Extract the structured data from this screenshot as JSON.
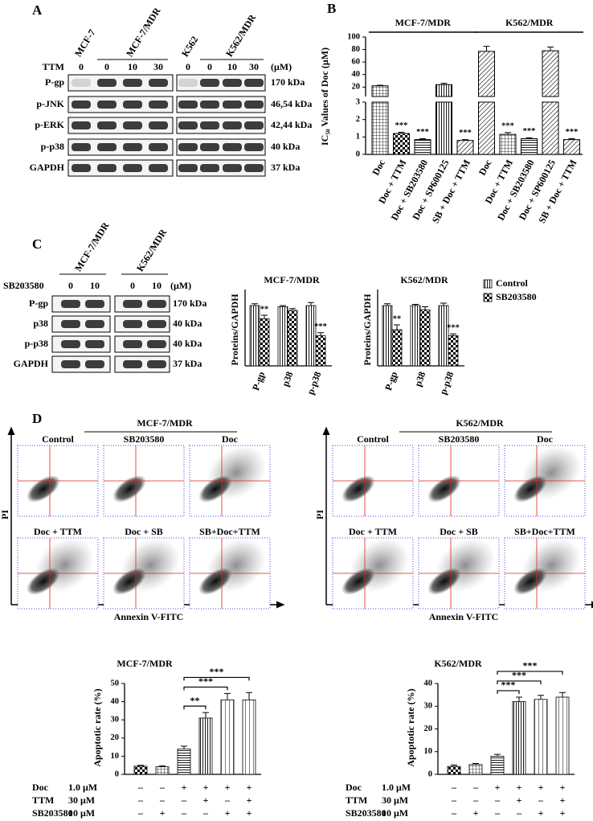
{
  "panel_a": {
    "label": "A",
    "cell_lines": [
      "MCF-7",
      "MCF-7/MDR",
      "K562",
      "K562/MDR"
    ],
    "treatment": "TTM",
    "doses": [
      0,
      0,
      10,
      30,
      0,
      0,
      10,
      30
    ],
    "unit": "(μM)",
    "proteins": [
      "P-gp",
      "p-JNK",
      "p-ERK",
      "p-p38",
      "GAPDH"
    ],
    "sizes": [
      "170 kDa",
      "46,54 kDa",
      "42,44 kDa",
      "40 kDa",
      "37 kDa"
    ]
  },
  "panel_b": {
    "label": "B"
  },
  "panel_c": {
    "label": "C",
    "cell_lines": [
      "MCF-7/MDR",
      "K562/MDR"
    ],
    "treatment": "SB203580",
    "doses": [
      0,
      10,
      0,
      10
    ],
    "unit": "(μM)",
    "proteins": [
      "P-gp",
      "p38",
      "p-p38",
      "GAPDH"
    ],
    "sizes": [
      "170 kDa",
      "40 kDa",
      "40 kDa",
      "37 kDa"
    ]
  },
  "panel_d": {
    "label": "D",
    "y_axis": "PI",
    "x_axis": "Annexin V-FITC",
    "flow": [
      {
        "title": "MCF-7/MDR",
        "conditions": [
          "Control",
          "SB203580",
          "Doc",
          "Doc + TTM",
          "Doc + SB",
          "SB+Doc+TTM"
        ]
      },
      {
        "title": "K562/MDR",
        "conditions": [
          "Control",
          "SB203580",
          "Doc",
          "Doc + TTM",
          "Doc + SB",
          "SB+Doc+TTM"
        ]
      }
    ]
  },
  "chart_data": [
    {
      "type": "broken_bar",
      "ylabel": "IC₅₀ Values of Doc (μM)",
      "groups": [
        "MCF-7/MDR",
        "K562/MDR"
      ],
      "categories": [
        "Doc",
        "Doc + TTM",
        "Doc + SB203580",
        "Doc + SP600125",
        "SB + Doc + TTM",
        "Doc",
        "Doc + TTM",
        "Doc + SB203580",
        "Doc + SP600125",
        "SB + Doc + TTM"
      ],
      "values": [
        22,
        1.2,
        0.85,
        24,
        0.8,
        77,
        1.15,
        0.9,
        78,
        0.85
      ],
      "errors": [
        1,
        0.07,
        0.05,
        2,
        0.05,
        8,
        0.1,
        0.05,
        6,
        0.05
      ],
      "annotations": [
        null,
        "***",
        "***",
        null,
        "***",
        null,
        "***",
        "***",
        null,
        "***"
      ],
      "patterns": [
        "grid",
        "check",
        "hlines",
        "vlines",
        "diag",
        "diag",
        "grid",
        "hlines",
        "diag",
        "diag"
      ],
      "segments": [
        {
          "ylim": [
            0,
            3
          ],
          "yticks": [
            0,
            1,
            2,
            3
          ]
        },
        {
          "ylim": [
            5,
            100
          ],
          "yticks": [
            20,
            40,
            60,
            80,
            100
          ]
        }
      ]
    },
    {
      "type": "grouped_bar",
      "title": "MCF-7/MDR",
      "ylabel": "Proteins/GAPDH",
      "categories": [
        "P-gp",
        "p38",
        "p-p38"
      ],
      "ylim": [
        0,
        1.2
      ],
      "legend": false,
      "series": [
        {
          "name": "Control",
          "pattern": "vlines",
          "values": [
            1.0,
            0.98,
            1.0
          ],
          "errors": [
            0.03,
            0.02,
            0.05
          ],
          "annotations": [
            null,
            null,
            null
          ]
        },
        {
          "name": "SB203580",
          "pattern": "check",
          "values": [
            0.78,
            0.92,
            0.5
          ],
          "errors": [
            0.06,
            0.03,
            0.05
          ],
          "annotations": [
            "**",
            null,
            "***"
          ]
        }
      ]
    },
    {
      "type": "grouped_bar",
      "title": "K562/MDR",
      "ylabel": "Proteins/GAPDH",
      "categories": [
        "P-gp",
        "p38",
        "p-p38"
      ],
      "ylim": [
        0,
        1.2
      ],
      "legend": true,
      "series": [
        {
          "name": "Control",
          "pattern": "vlines",
          "values": [
            1.0,
            1.0,
            1.0
          ],
          "errors": [
            0.03,
            0.02,
            0.04
          ],
          "annotations": [
            null,
            null,
            null
          ]
        },
        {
          "name": "SB203580",
          "pattern": "check",
          "values": [
            0.6,
            0.93,
            0.5
          ],
          "errors": [
            0.08,
            0.05,
            0.03
          ],
          "annotations": [
            "**",
            null,
            "***"
          ]
        }
      ]
    },
    {
      "type": "bar",
      "title": "MCF-7/MDR",
      "ylabel": "Apoptotic rate (%)",
      "values": [
        4.5,
        4.2,
        14,
        31,
        41,
        41
      ],
      "errors": [
        0.5,
        0.5,
        1.5,
        3,
        3.5,
        4
      ],
      "patterns": [
        "check",
        "grid",
        "hlines",
        "vlines",
        "sparse",
        "sparse"
      ],
      "ylim": [
        0,
        50
      ],
      "yticks": [
        0,
        10,
        20,
        30,
        40,
        50
      ],
      "comparisons": [
        {
          "label": "**",
          "from": 2,
          "to": 3
        },
        {
          "label": "***",
          "from": 2,
          "to": 4
        },
        {
          "label": "***",
          "from": 2,
          "to": 5
        }
      ],
      "conditions": [
        {
          "name": "Doc",
          "dose": "1.0 μM",
          "signs": [
            "–",
            "–",
            "+",
            "+",
            "+",
            "+"
          ]
        },
        {
          "name": "TTM",
          "dose": "30 μM",
          "signs": [
            "–",
            "–",
            "–",
            "+",
            "–",
            "+"
          ]
        },
        {
          "name": "SB203580",
          "dose": "10 μM",
          "signs": [
            "–",
            "+",
            "–",
            "–",
            "+",
            "+"
          ]
        }
      ]
    },
    {
      "type": "bar",
      "title": "K562/MDR",
      "ylabel": "Apoptotic rate (%)",
      "values": [
        3.5,
        4.3,
        8,
        32,
        33,
        34
      ],
      "errors": [
        0.6,
        0.5,
        0.8,
        2,
        1.8,
        2
      ],
      "patterns": [
        "check",
        "grid",
        "hlines",
        "vlines",
        "sparse",
        "sparse"
      ],
      "ylim": [
        0,
        40
      ],
      "yticks": [
        0,
        10,
        20,
        30,
        40
      ],
      "comparisons": [
        {
          "label": "***",
          "from": 2,
          "to": 3
        },
        {
          "label": "***",
          "from": 2,
          "to": 4
        },
        {
          "label": "***",
          "from": 2,
          "to": 5
        }
      ],
      "conditions": [
        {
          "name": "Doc",
          "dose": "1.0 μM",
          "signs": [
            "–",
            "–",
            "+",
            "+",
            "+",
            "+"
          ]
        },
        {
          "name": "TTM",
          "dose": "30 μM",
          "signs": [
            "–",
            "–",
            "–",
            "+",
            "–",
            "+"
          ]
        },
        {
          "name": "SB203580",
          "dose": "10 μM",
          "signs": [
            "–",
            "+",
            "–",
            "–",
            "+",
            "+"
          ]
        }
      ]
    }
  ]
}
